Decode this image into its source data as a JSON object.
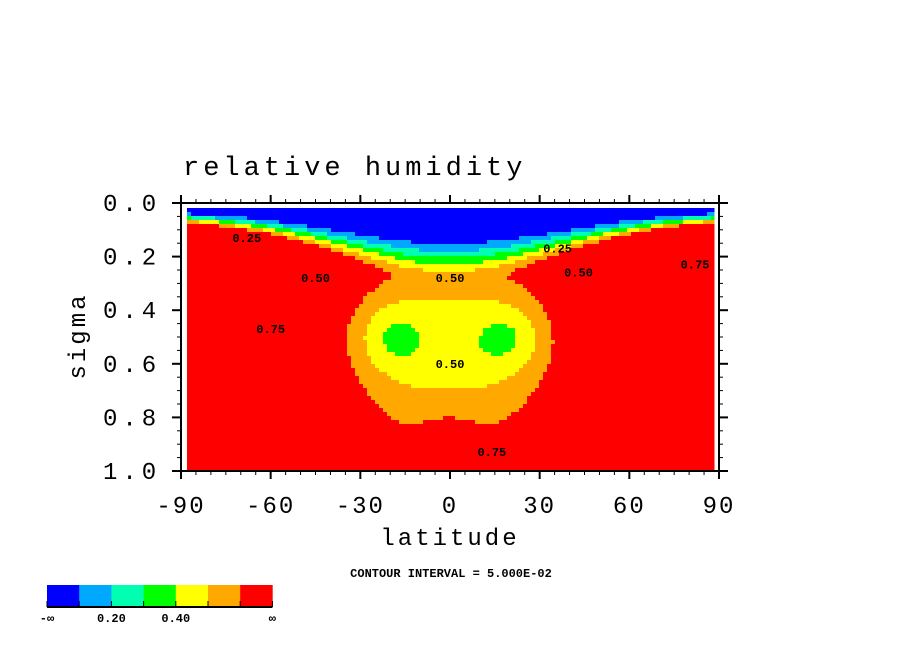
{
  "chart_data": {
    "type": "heatmap",
    "title": "relative humidity",
    "xlabel": "latitude",
    "ylabel": "sigma",
    "xlim": [
      -90,
      90
    ],
    "ylim": [
      1.0,
      0.0
    ],
    "x_ticks": [
      "-90",
      "-60",
      "-30",
      "0",
      "30",
      "60",
      "90"
    ],
    "x_tick_values": [
      -90,
      -60,
      -30,
      0,
      30,
      60,
      90
    ],
    "y_ticks": [
      "0.0",
      "0.2",
      "0.4",
      "0.6",
      "0.8",
      "1.0"
    ],
    "y_tick_values": [
      0,
      0.2,
      0.4,
      0.6,
      0.8,
      1.0
    ],
    "contour_interval_text": "CONTOUR INTERVAL = 5.000E-02",
    "contour_labels": [
      {
        "text": "0.25",
        "lat": -68,
        "sigma": 0.13
      },
      {
        "text": "0.25",
        "lat": 36,
        "sigma": 0.17
      },
      {
        "text": "0.50",
        "lat": -45,
        "sigma": 0.28
      },
      {
        "text": "0.50",
        "lat": 0,
        "sigma": 0.28
      },
      {
        "text": "0.50",
        "lat": 43,
        "sigma": 0.26
      },
      {
        "text": "0.50",
        "lat": 0,
        "sigma": 0.6
      },
      {
        "text": "0.75",
        "lat": -60,
        "sigma": 0.47
      },
      {
        "text": "0.75",
        "lat": 14,
        "sigma": 0.93
      },
      {
        "text": "0.75",
        "lat": 82,
        "sigma": 0.23
      }
    ],
    "color_levels": [
      0.1,
      0.2,
      0.3,
      0.4,
      0.5,
      0.6
    ],
    "colors": [
      "#0000ff",
      "#00a8ff",
      "#00ffb0",
      "#00ff00",
      "#ffff00",
      "#ffa800",
      "#ff0000"
    ],
    "colorbar_labels": [
      "-∞",
      "0.20",
      "0.40",
      "∞"
    ]
  }
}
